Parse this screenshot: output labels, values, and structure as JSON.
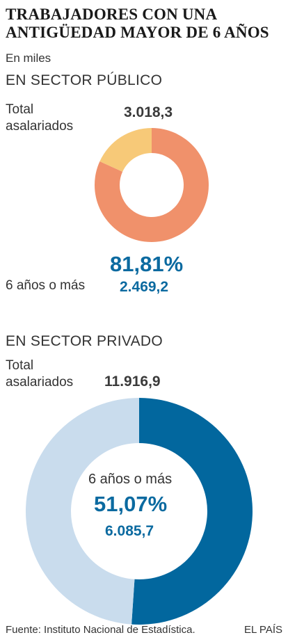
{
  "header": {
    "title_line1": "TRABAJADORES CON UNA",
    "title_line2": "ANTIGÜEDAD MAYOR DE 6 AÑOS",
    "subtitle": "En miles"
  },
  "publico": {
    "section": "EN SECTOR PÚBLICO",
    "total_label_line1": "Total",
    "total_label_line2": "asalariados",
    "total_value": "3.018,3",
    "pct_label": "81,81%",
    "group_label": "6 años o más",
    "group_value": "2.469,2"
  },
  "privado": {
    "section": "EN SECTOR PRIVADO",
    "total_label_line1": "Total",
    "total_label_line2": "asalariados",
    "total_value": "11.916,9",
    "group_label": "6 años o más",
    "pct_label": "51,07%",
    "group_value": "6.085,7"
  },
  "footer": {
    "source": "Fuente: Instituto Nacional de Estadística.",
    "brand": "EL PAÍS"
  },
  "chart_data": [
    {
      "type": "pie",
      "donut": true,
      "title": "EN SECTOR PÚBLICO",
      "total": 3018.3,
      "slices": [
        {
          "label": "6 años o más",
          "value": 2469.2,
          "percent": 81.81,
          "color": "#f0916b"
        },
        {
          "label": "",
          "value": 549.1,
          "percent": 18.19,
          "color": "#f7c978"
        }
      ]
    },
    {
      "type": "pie",
      "donut": true,
      "title": "EN SECTOR PRIVADO",
      "total": 11916.9,
      "slices": [
        {
          "label": "6 años o más",
          "value": 6085.7,
          "percent": 51.07,
          "color": "#02679e"
        },
        {
          "label": "",
          "value": 5831.2,
          "percent": 48.93,
          "color": "#c9dced"
        }
      ]
    }
  ]
}
